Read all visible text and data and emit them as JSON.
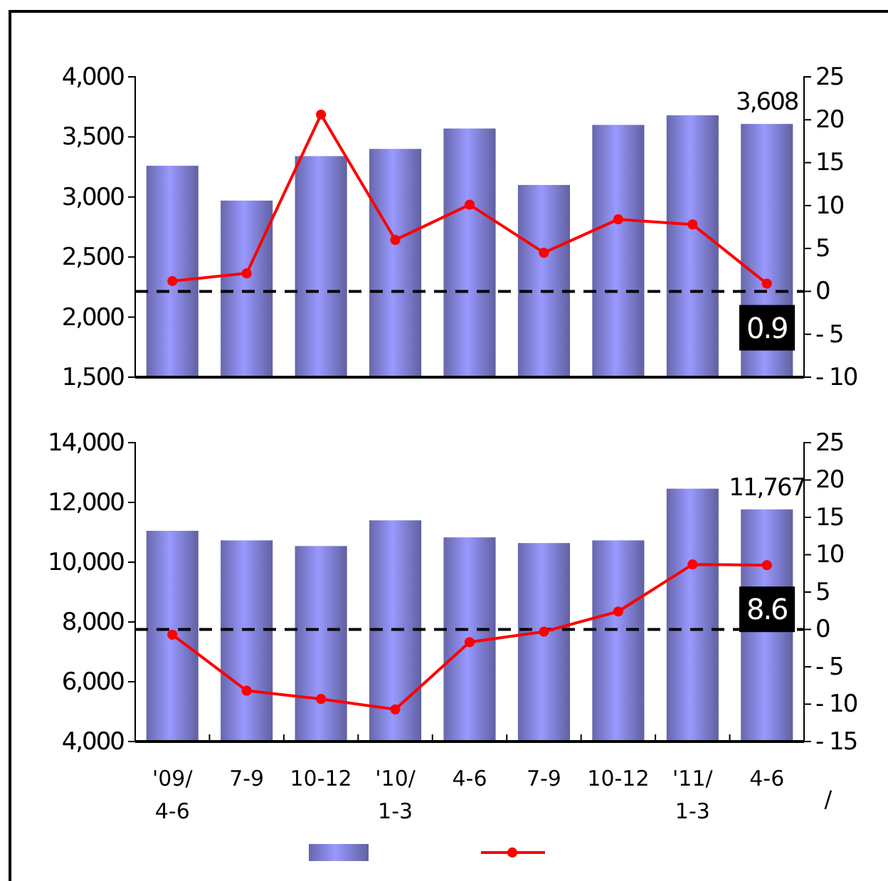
{
  "chart_data": [
    {
      "type": "bar",
      "categories": [
        null,
        null,
        null,
        null,
        null,
        null,
        null,
        null,
        null
      ],
      "series": [
        {
          "color": "#9999ff",
          "values": [
            3260,
            2970,
            3340,
            3400,
            3570,
            3100,
            3600,
            3680,
            3608
          ],
          "value_labels": [
            null,
            null,
            null,
            null,
            null,
            null,
            null,
            null,
            "3,608"
          ]
        },
        {
          "type": "line",
          "axis": "y2",
          "color": "#ff0000",
          "values": [
            1.2,
            2.1,
            20.6,
            6.0,
            10.1,
            4.5,
            8.4,
            7.8,
            0.9
          ],
          "value_labels": [
            null,
            null,
            null,
            null,
            null,
            null,
            null,
            null,
            "0.9"
          ]
        }
      ],
      "ylim": [
        1500,
        4000
      ],
      "yticks": [
        {
          "value": 1500,
          "label": "1,500"
        },
        {
          "value": 2000,
          "label": "2,000"
        },
        {
          "value": 2500,
          "label": "2,500"
        },
        {
          "value": 3000,
          "label": "3,000"
        },
        {
          "value": 3500,
          "label": "3,500"
        },
        {
          "value": 4000,
          "label": "4,000"
        }
      ],
      "y2lim": [
        -10,
        25
      ],
      "y2ticks": [
        -10,
        -5,
        0,
        5,
        10,
        15,
        20,
        25
      ],
      "ref_lines": [
        {
          "axis": "y2",
          "value": 0,
          "line_style": "dashed",
          "color": "#000000"
        }
      ],
      "marker": "circle",
      "tick_labels": "y"
    },
    {
      "type": "bar",
      "categories": [
        "'09/\n4-6",
        "7-9",
        "10-12",
        "'10/\n1-3",
        "4-6",
        "7-9",
        "10-12",
        "'11/\n1-3",
        "4-6"
      ],
      "series": [
        {
          "color": "#9999ff",
          "values": [
            11050,
            10730,
            10540,
            11400,
            10830,
            10640,
            10730,
            12460,
            11767
          ],
          "value_labels": [
            null,
            null,
            null,
            null,
            null,
            null,
            null,
            null,
            "11,767"
          ]
        },
        {
          "type": "line",
          "axis": "y2",
          "color": "#ff0000",
          "values": [
            -0.7,
            -8.2,
            -9.3,
            -10.7,
            -1.7,
            -0.3,
            2.4,
            8.7,
            8.6
          ],
          "value_labels": [
            null,
            null,
            null,
            null,
            null,
            null,
            null,
            null,
            "8.6"
          ]
        }
      ],
      "ylim": [
        4000,
        14000
      ],
      "yticks": [
        {
          "value": 4000,
          "label": "4,000"
        },
        {
          "value": 6000,
          "label": "6,000"
        },
        {
          "value": 8000,
          "label": "8,000"
        },
        {
          "value": 10000,
          "label": "10,000"
        },
        {
          "value": 12000,
          "label": "12,000"
        },
        {
          "value": 14000,
          "label": "14,000"
        }
      ],
      "y2lim": [
        -15,
        25
      ],
      "y2ticks": [
        -15,
        -10,
        -5,
        0,
        5,
        10,
        15,
        20,
        25
      ],
      "ref_lines": [
        {
          "axis": "y2",
          "value": 0,
          "line_style": "dashed",
          "color": "#000000"
        }
      ],
      "marker": "circle",
      "annotations": [
        "/"
      ]
    }
  ]
}
